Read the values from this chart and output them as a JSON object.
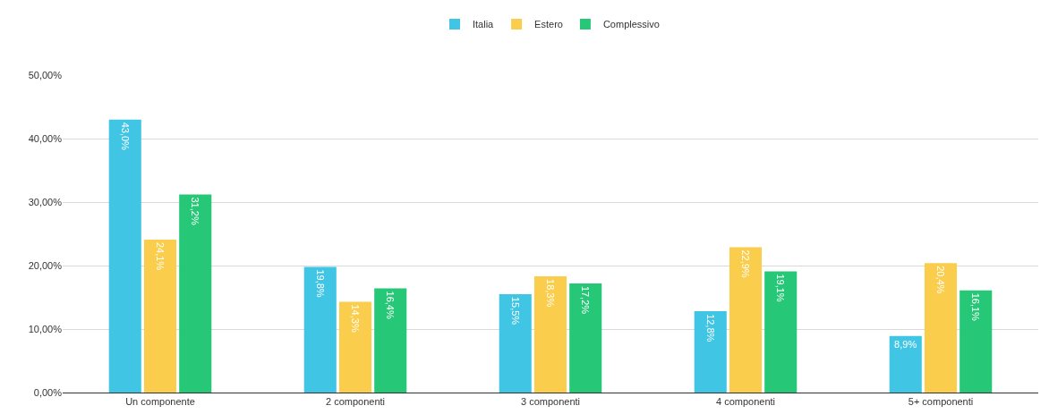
{
  "chart_data": {
    "type": "bar",
    "categories": [
      "Un componente",
      "2 componenti",
      "3 componenti",
      "4 componenti",
      "5+ componenti"
    ],
    "series": [
      {
        "name": "Italia",
        "color": "#41c5e4",
        "values": [
          43.0,
          19.8,
          15.5,
          12.8,
          8.9
        ],
        "value_labels": [
          "43,0%",
          "19,8%",
          "15,5%",
          "12,8%",
          "8,9%"
        ]
      },
      {
        "name": "Estero",
        "color": "#fbcd4c",
        "values": [
          24.1,
          14.3,
          18.3,
          22.9,
          20.4
        ],
        "value_labels": [
          "24,1%",
          "14,3%",
          "18,3%",
          "22,9%",
          "20,4%"
        ]
      },
      {
        "name": "Complessivo",
        "color": "#26c877",
        "values": [
          31.2,
          16.4,
          17.2,
          19.1,
          16.1
        ],
        "value_labels": [
          "31,2%",
          "16,4%",
          "17,2%",
          "19,1%",
          "16,1%"
        ]
      }
    ],
    "ylim": [
      0,
      50
    ],
    "yticks": [
      {
        "value": 0,
        "label": "0,00%"
      },
      {
        "value": 10,
        "label": "10,00%"
      },
      {
        "value": 20,
        "label": "20,00%"
      },
      {
        "value": 30,
        "label": "30,00%"
      },
      {
        "value": 40,
        "label": "40,00%"
      },
      {
        "value": 50,
        "label": "50,00%"
      }
    ],
    "grid": "y",
    "legend": "top"
  }
}
